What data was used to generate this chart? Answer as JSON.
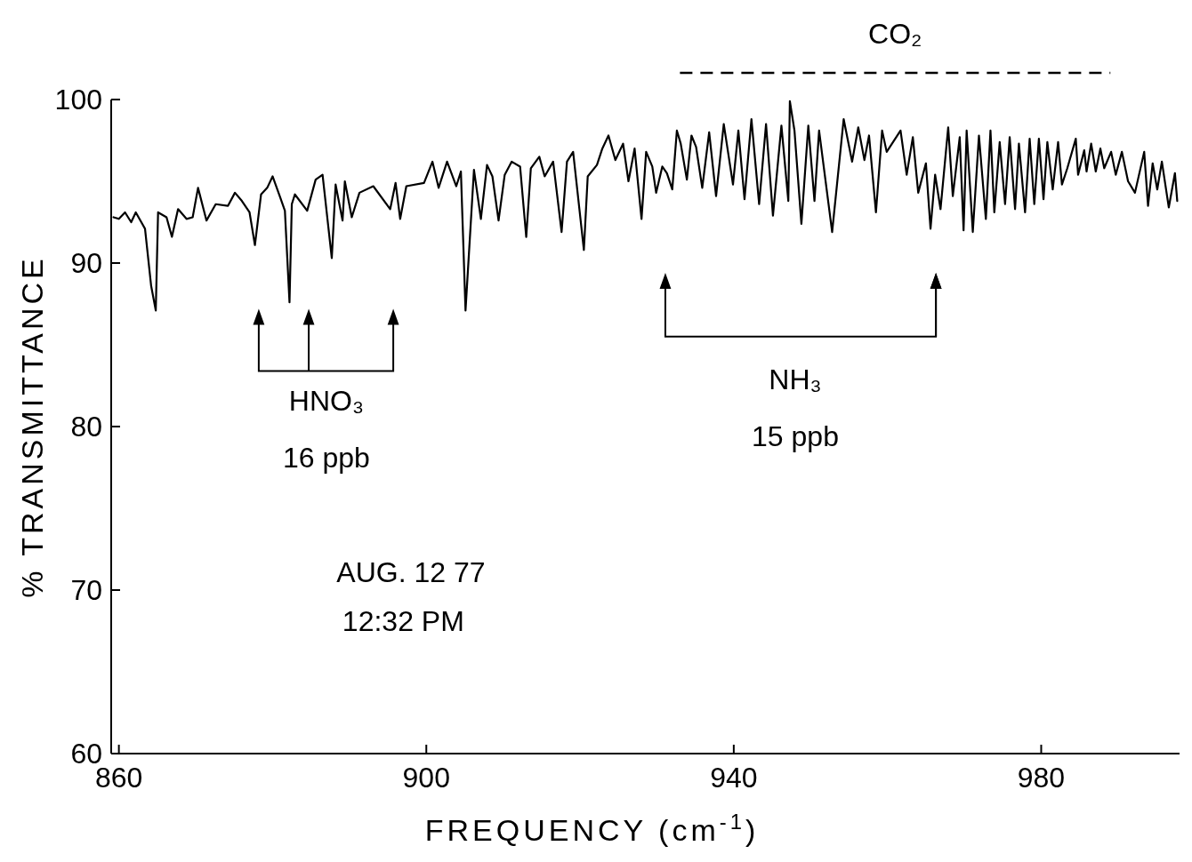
{
  "chart_data": {
    "type": "line",
    "xlabel": "FREQUENCY (cm$^{-1}$)",
    "ylabel": "% TRANSMITTANCE",
    "xlim": [
      859,
      998
    ],
    "ylim": [
      60,
      100
    ],
    "xticks": [
      860,
      900,
      940,
      980
    ],
    "yticks": [
      60,
      70,
      80,
      90,
      100
    ],
    "grid": false,
    "marker": "none",
    "line_style": "solid",
    "series": [
      {
        "color": "#000000",
        "x": [
          859.3,
          860.0,
          860.8,
          861.6,
          862.2,
          863.4,
          864.2,
          864.8,
          865.1,
          866.2,
          866.9,
          867.7,
          868.8,
          869.6,
          870.3,
          871.4,
          872.6,
          874.2,
          875.1,
          876.0,
          877.0,
          877.7,
          878.5,
          879.3,
          880.0,
          881.0,
          881.6,
          882.2,
          882.5,
          882.9,
          884.5,
          885.6,
          886.5,
          887.7,
          888.2,
          889.1,
          889.4,
          890.3,
          891.3,
          893.1,
          895.3,
          896.0,
          896.6,
          897.4,
          899.7,
          900.8,
          901.6,
          902.7,
          903.9,
          904.5,
          905.1,
          906.2,
          907.1,
          907.9,
          908.6,
          909.4,
          910.2,
          911.1,
          912.2,
          913.0,
          913.6,
          914.7,
          915.4,
          916.5,
          917.6,
          918.3,
          919.1,
          920.5,
          921.0,
          922.2,
          922.9,
          923.7,
          924.6,
          925.6,
          926.3,
          927.1,
          928.0,
          928.6,
          929.4,
          929.9,
          930.7,
          931.3,
          932.0,
          932.6,
          933.1,
          933.9,
          934.5,
          935.1,
          935.9,
          936.8,
          937.7,
          938.7,
          939.9,
          940.6,
          941.4,
          942.3,
          943.3,
          944.2,
          945.1,
          946.2,
          947.1,
          947.3,
          947.9,
          948.8,
          949.7,
          950.5,
          951.1,
          952.8,
          954.3,
          955.4,
          956.2,
          957.0,
          957.6,
          958.5,
          959.3,
          959.9,
          961.7,
          962.5,
          963.3,
          964.0,
          965.0,
          965.6,
          966.2,
          966.9,
          967.9,
          968.5,
          969.4,
          969.9,
          970.3,
          971.1,
          971.9,
          972.8,
          973.4,
          973.9,
          974.6,
          975.3,
          975.9,
          976.6,
          977.1,
          977.9,
          978.5,
          979.1,
          979.7,
          980.3,
          980.8,
          981.5,
          982.2,
          982.7,
          983.4,
          984.5,
          984.8,
          985.6,
          985.9,
          986.5,
          987.1,
          987.7,
          988.2,
          989.1,
          989.7,
          990.5,
          991.3,
          992.2,
          993.4,
          993.9,
          994.5,
          995.1,
          995.7,
          996.6,
          997.4,
          997.7
        ],
        "values": [
          92.8,
          92.7,
          93.1,
          92.5,
          93.1,
          92.1,
          88.6,
          87.1,
          93.1,
          92.8,
          91.6,
          93.3,
          92.7,
          92.8,
          94.6,
          92.6,
          93.6,
          93.5,
          94.3,
          93.8,
          93.1,
          91.1,
          94.2,
          94.6,
          95.3,
          94.0,
          93.2,
          87.6,
          93.6,
          94.2,
          93.2,
          95.1,
          95.4,
          90.3,
          94.8,
          92.6,
          95.0,
          92.8,
          94.3,
          94.7,
          93.3,
          94.9,
          92.7,
          94.7,
          94.9,
          96.2,
          94.6,
          96.2,
          94.7,
          95.6,
          87.1,
          95.7,
          92.7,
          96.0,
          95.3,
          92.6,
          95.4,
          96.2,
          95.9,
          91.6,
          95.8,
          96.5,
          95.3,
          96.2,
          91.9,
          96.2,
          96.8,
          90.8,
          95.3,
          96.0,
          97.0,
          97.8,
          96.3,
          97.3,
          95.0,
          97.0,
          92.7,
          96.8,
          95.9,
          94.3,
          95.9,
          95.5,
          94.5,
          98.1,
          97.3,
          95.1,
          97.8,
          97.1,
          94.6,
          98.0,
          94.1,
          98.5,
          94.8,
          98.1,
          93.9,
          98.8,
          93.6,
          98.5,
          92.9,
          98.4,
          93.8,
          99.9,
          98.1,
          92.4,
          98.4,
          93.8,
          98.1,
          91.9,
          98.8,
          96.2,
          98.3,
          96.3,
          97.8,
          93.1,
          98.1,
          96.8,
          98.1,
          95.4,
          97.7,
          94.3,
          96.1,
          92.1,
          95.4,
          93.3,
          98.3,
          94.1,
          97.7,
          92.0,
          98.1,
          91.9,
          97.8,
          92.7,
          98.1,
          93.1,
          97.4,
          93.6,
          97.7,
          93.3,
          97.3,
          93.1,
          97.6,
          93.6,
          97.6,
          93.9,
          97.4,
          94.5,
          97.4,
          94.8,
          95.8,
          97.6,
          95.4,
          96.9,
          95.6,
          97.3,
          95.6,
          97.0,
          95.8,
          96.8,
          95.4,
          96.8,
          95.0,
          94.3,
          96.8,
          93.5,
          96.1,
          94.5,
          96.2,
          93.4,
          95.5,
          93.8
        ]
      }
    ],
    "annotations": [
      "CO₂",
      "HNO₃",
      "16 ppb",
      "NH₃",
      "15 ppb",
      "AUG. 12 77",
      "12:32 PM"
    ]
  }
}
